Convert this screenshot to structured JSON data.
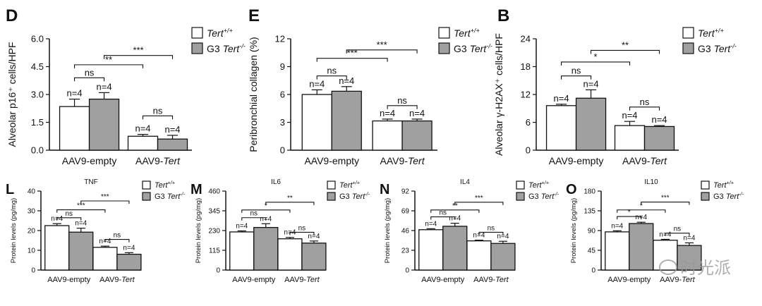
{
  "legend_labels": [
    "Tert+/+",
    "G3 Tert-/-"
  ],
  "chart_data": [
    {
      "panel": "D",
      "type": "bar",
      "title": "",
      "ylabel": "Alveolar p16⁺ cells/HPF",
      "ylim": [
        0,
        6.0
      ],
      "yticks": [
        "0.0",
        "1.5",
        "3.0",
        "4.5",
        "6.0"
      ],
      "categories": [
        "AAV9-empty",
        "AAV9-Tert"
      ],
      "series": [
        {
          "name": "Tert+/+",
          "values": [
            2.35,
            0.75
          ],
          "errors": [
            0.4,
            0.1
          ]
        },
        {
          "name": "G3 Tert-/-",
          "values": [
            2.75,
            0.6
          ],
          "errors": [
            0.35,
            0.2
          ]
        }
      ],
      "n_labels": [
        "n=4",
        "n=4",
        "n=4",
        "n=4"
      ],
      "annotations": [
        {
          "label": "ns",
          "from": [
            0,
            0
          ],
          "to": [
            0,
            1
          ],
          "level": 3.9
        },
        {
          "label": "ns",
          "from": [
            1,
            0
          ],
          "to": [
            1,
            1
          ],
          "level": 1.85
        },
        {
          "label": "**",
          "from": [
            0,
            0
          ],
          "to": [
            1,
            0
          ],
          "level": 4.6
        },
        {
          "label": "***",
          "from": [
            0,
            1
          ],
          "to": [
            1,
            1
          ],
          "level": 5.1
        }
      ]
    },
    {
      "panel": "E",
      "type": "bar",
      "title": "",
      "ylabel": "Peribronchial collagen (%)",
      "ylim": [
        0,
        12
      ],
      "yticks": [
        "0",
        "3",
        "6",
        "9",
        "12"
      ],
      "categories": [
        "AAV9-empty",
        "AAV9-Tert"
      ],
      "series": [
        {
          "name": "Tert+/+",
          "values": [
            6.0,
            3.15
          ],
          "errors": [
            0.5,
            0.2
          ]
        },
        {
          "name": "G3 Tert-/-",
          "values": [
            6.35,
            3.15
          ],
          "errors": [
            0.5,
            0.2
          ]
        }
      ],
      "n_labels": [
        "n=4",
        "n=4",
        "n=4",
        "n=4"
      ],
      "annotations": [
        {
          "label": "ns",
          "from": [
            0,
            0
          ],
          "to": [
            0,
            1
          ],
          "level": 8.0
        },
        {
          "label": "ns",
          "from": [
            1,
            0
          ],
          "to": [
            1,
            1
          ],
          "level": 4.8
        },
        {
          "label": "***",
          "from": [
            0,
            0
          ],
          "to": [
            1,
            0
          ],
          "level": 9.9
        },
        {
          "label": "***",
          "from": [
            0,
            1
          ],
          "to": [
            1,
            1
          ],
          "level": 10.8
        }
      ]
    },
    {
      "panel": "B",
      "type": "bar",
      "title": "",
      "ylabel": "Alveolar γ-H2AX⁺ cells/HPF",
      "ylim": [
        0,
        24
      ],
      "yticks": [
        "0",
        "6",
        "12",
        "18",
        "24"
      ],
      "categories": [
        "AAV9-empty",
        "AAV9-Tert"
      ],
      "series": [
        {
          "name": "Tert+/+",
          "values": [
            9.6,
            5.3
          ],
          "errors": [
            0.3,
            0.9
          ]
        },
        {
          "name": "G3 Tert-/-",
          "values": [
            11.2,
            5.1
          ],
          "errors": [
            1.8,
            0.2
          ]
        }
      ],
      "n_labels": [
        "n=4",
        "n=4",
        "n=4",
        "n=4"
      ],
      "annotations": [
        {
          "label": "ns",
          "from": [
            0,
            0
          ],
          "to": [
            0,
            1
          ],
          "level": 16.0
        },
        {
          "label": "ns",
          "from": [
            1,
            0
          ],
          "to": [
            1,
            1
          ],
          "level": 9.3
        },
        {
          "label": "*",
          "from": [
            0,
            0
          ],
          "to": [
            1,
            0
          ],
          "level": 19.0
        },
        {
          "label": "**",
          "from": [
            0,
            1
          ],
          "to": [
            1,
            1
          ],
          "level": 21.5
        }
      ]
    },
    {
      "panel": "L",
      "type": "bar",
      "title": "TNF",
      "ylabel": "Protein levels (pg/mg)",
      "ylim": [
        0,
        40
      ],
      "yticks": [
        "0",
        "10",
        "20",
        "30",
        "40"
      ],
      "categories": [
        "AAV9-empty",
        "AAV9-Tert"
      ],
      "series": [
        {
          "name": "Tert+/+",
          "values": [
            22.5,
            11.5
          ],
          "errors": [
            1.0,
            0.6
          ]
        },
        {
          "name": "G3 Tert-/-",
          "values": [
            19.2,
            8.0
          ],
          "errors": [
            2.0,
            0.8
          ]
        }
      ],
      "n_labels": [
        "n=4",
        "n=4",
        "n=4",
        "n=4"
      ],
      "annotations": [
        {
          "label": "ns",
          "from": [
            0,
            0
          ],
          "to": [
            0,
            1
          ],
          "level": 26.5
        },
        {
          "label": "ns",
          "from": [
            1,
            0
          ],
          "to": [
            1,
            1
          ],
          "level": 15.5
        },
        {
          "label": "***",
          "from": [
            0,
            0
          ],
          "to": [
            1,
            0
          ],
          "level": 30.5
        },
        {
          "label": "***",
          "from": [
            0,
            1
          ],
          "to": [
            1,
            1
          ],
          "level": 35.0
        }
      ]
    },
    {
      "panel": "M",
      "type": "bar",
      "title": "IL6",
      "ylabel": "Protein levels (pg/mg)",
      "ylim": [
        0,
        460
      ],
      "yticks": [
        "0",
        "115",
        "230",
        "345",
        "460"
      ],
      "categories": [
        "AAV9-empty",
        "AAV9-Tert"
      ],
      "series": [
        {
          "name": "Tert+/+",
          "values": [
            222,
            182
          ],
          "errors": [
            6,
            8
          ]
        },
        {
          "name": "G3 Tert-/-",
          "values": [
            248,
            157
          ],
          "errors": [
            22,
            12
          ]
        }
      ],
      "n_labels": [
        "n=4",
        "n=4",
        "n=4",
        "n=4"
      ],
      "annotations": [
        {
          "label": "ns",
          "from": [
            0,
            0
          ],
          "to": [
            0,
            1
          ],
          "level": 305
        },
        {
          "label": "ns",
          "from": [
            1,
            0
          ],
          "to": [
            1,
            1
          ],
          "level": 220
        },
        {
          "label": "*",
          "from": [
            0,
            0
          ],
          "to": [
            1,
            0
          ],
          "level": 350
        },
        {
          "label": "**",
          "from": [
            0,
            1
          ],
          "to": [
            1,
            1
          ],
          "level": 395
        }
      ]
    },
    {
      "panel": "N",
      "type": "bar",
      "title": "IL4",
      "ylabel": "Protein levels (pg/mg)",
      "ylim": [
        0,
        92
      ],
      "yticks": [
        "0",
        "23",
        "46",
        "69",
        "92"
      ],
      "categories": [
        "AAV9-empty",
        "AAV9-Tert"
      ],
      "series": [
        {
          "name": "Tert+/+",
          "values": [
            47,
            34
          ],
          "errors": [
            1.2,
            0.8
          ]
        },
        {
          "name": "G3 Tert-/-",
          "values": [
            51,
            31
          ],
          "errors": [
            3.5,
            2.5
          ]
        }
      ],
      "n_labels": [
        "n=4",
        "n=4",
        "n=4",
        "n=4"
      ],
      "annotations": [
        {
          "label": "ns",
          "from": [
            0,
            0
          ],
          "to": [
            0,
            1
          ],
          "level": 62
        },
        {
          "label": "ns",
          "from": [
            1,
            0
          ],
          "to": [
            1,
            1
          ],
          "level": 44
        },
        {
          "label": "**",
          "from": [
            0,
            0
          ],
          "to": [
            1,
            0
          ],
          "level": 70
        },
        {
          "label": "***",
          "from": [
            0,
            1
          ],
          "to": [
            1,
            1
          ],
          "level": 79
        }
      ]
    },
    {
      "panel": "O",
      "type": "bar",
      "title": "IL10",
      "ylabel": "Protein levels (pg/mg)",
      "ylim": [
        0,
        180
      ],
      "yticks": [
        "0",
        "45",
        "90",
        "135",
        "180"
      ],
      "categories": [
        "AAV9-empty",
        "AAV9-Tert"
      ],
      "series": [
        {
          "name": "Tert+/+",
          "values": [
            87,
            68
          ],
          "errors": [
            2.5,
            2
          ]
        },
        {
          "name": "G3 Tert-/-",
          "values": [
            106,
            56
          ],
          "errors": [
            3,
            6
          ]
        }
      ],
      "n_labels": [
        "n=4",
        "n=4",
        "n=4",
        "n=4"
      ],
      "annotations": [
        {
          "label": "*",
          "from": [
            0,
            0
          ],
          "to": [
            0,
            1
          ],
          "level": 122
        },
        {
          "label": "ns",
          "from": [
            1,
            0
          ],
          "to": [
            1,
            1
          ],
          "level": 84
        },
        {
          "label": "*",
          "from": [
            0,
            0
          ],
          "to": [
            1,
            0
          ],
          "level": 137
        },
        {
          "label": "***",
          "from": [
            0,
            1
          ],
          "to": [
            1,
            1
          ],
          "level": 155
        }
      ]
    }
  ],
  "watermark": "时光派"
}
